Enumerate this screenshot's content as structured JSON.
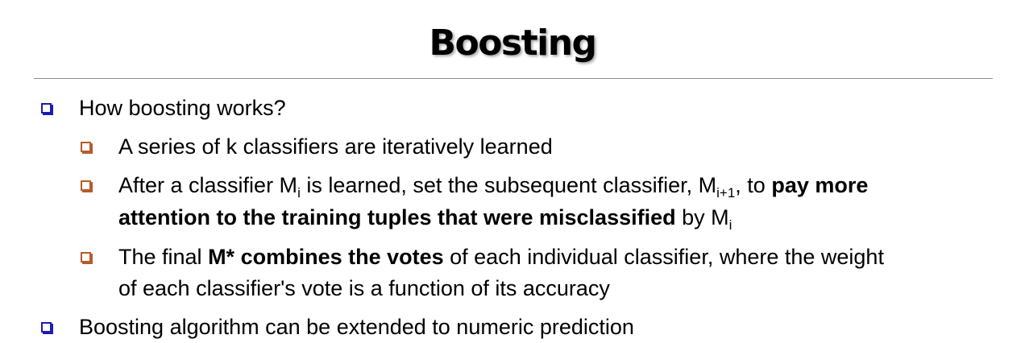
{
  "slide": {
    "title": "Boosting"
  },
  "bullets": {
    "b1": {
      "text": "How boosting works?"
    },
    "b1_1": {
      "text": "A series of k classifiers are iteratively learned"
    },
    "b1_2": {
      "p1": "After a classifier M",
      "sub1": "i",
      "p2": " is learned, set the subsequent classifier, M",
      "sub2": "i+1",
      "p3": ", to ",
      "bold1": "pay more",
      "bold2": "attention to the training tuples that were misclassified",
      "p4": " by M",
      "sub3": "i"
    },
    "b1_3": {
      "p1": "The final ",
      "bold": "M* combines the votes",
      "p2": " of each individual classifier, where the weight",
      "line2": "of each classifier's vote is a function of its accuracy"
    },
    "b2": {
      "text": "Boosting algorithm can be extended to numeric prediction"
    }
  },
  "colors": {
    "level1_bullet": "#1c1cb0",
    "level2_bullet": "#b65c2b",
    "rule": "#8c8c8c"
  }
}
